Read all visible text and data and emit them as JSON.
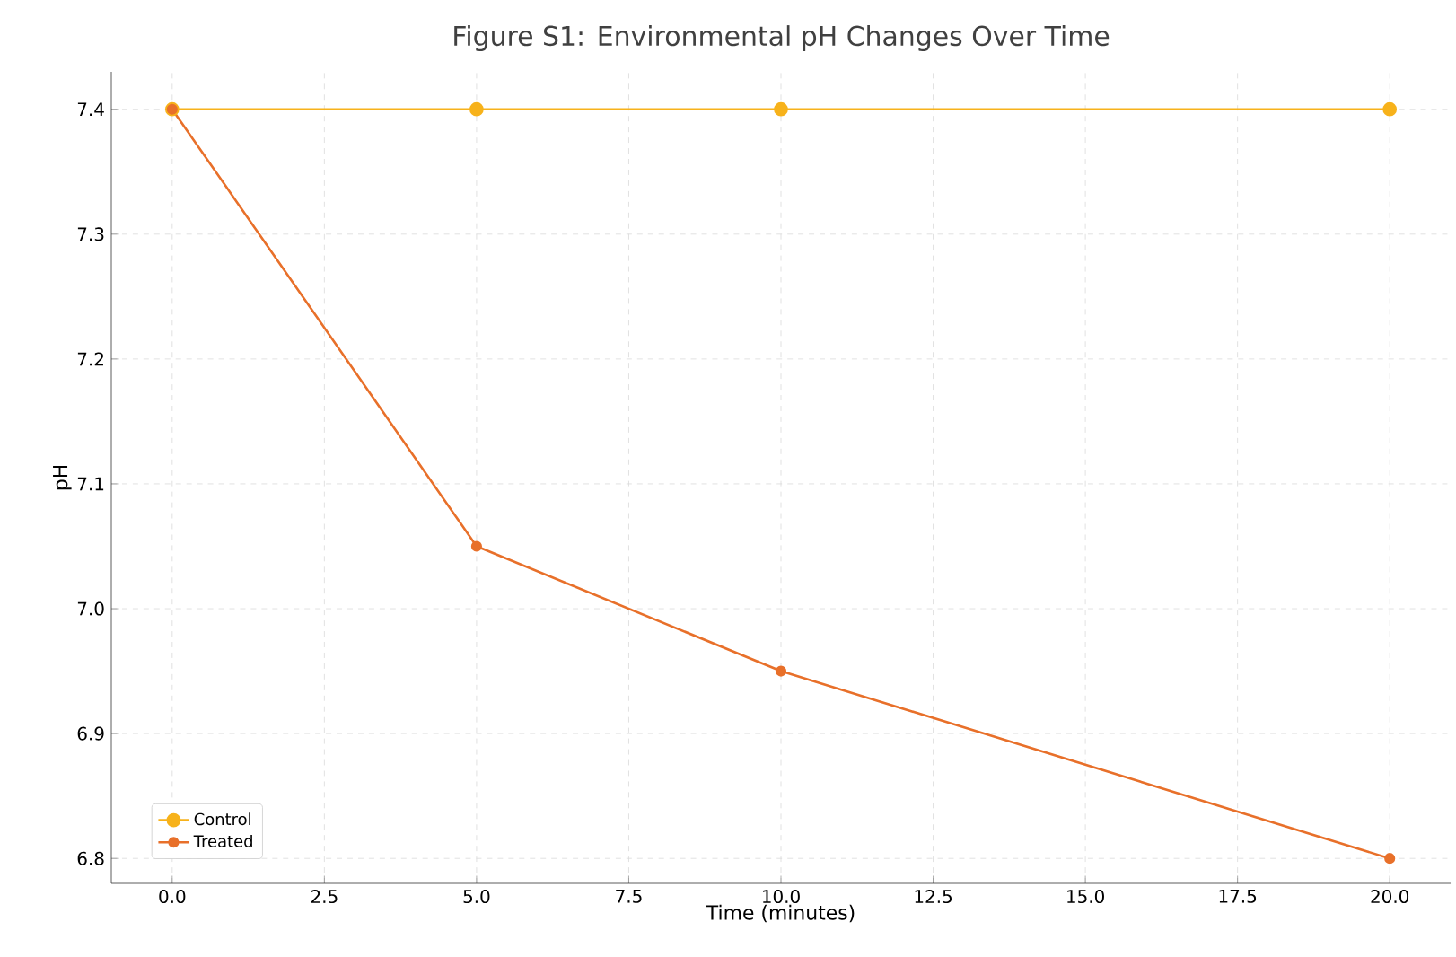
{
  "chart_data": {
    "type": "line",
    "title": "Figure S1: Environmental pH Changes Over Time",
    "xlabel": "Time (minutes)",
    "ylabel": "pH",
    "x": [
      0,
      5,
      10,
      20
    ],
    "series": [
      {
        "name": "Control",
        "color": "#f7b21b",
        "values": [
          7.4,
          7.4,
          7.4,
          7.4
        ]
      },
      {
        "name": "Treated",
        "color": "#e8702a",
        "values": [
          7.4,
          7.05,
          6.95,
          6.8
        ]
      }
    ],
    "xlim": [
      -1,
      21
    ],
    "ylim": [
      6.78,
      7.43
    ],
    "xticks": [
      {
        "value": 0,
        "label": "0.0"
      },
      {
        "value": 2.5,
        "label": "2.5"
      },
      {
        "value": 5,
        "label": "5.0"
      },
      {
        "value": 7.5,
        "label": "7.5"
      },
      {
        "value": 10,
        "label": "10.0"
      },
      {
        "value": 12.5,
        "label": "12.5"
      },
      {
        "value": 15,
        "label": "15.0"
      },
      {
        "value": 17.5,
        "label": "17.5"
      },
      {
        "value": 20,
        "label": "20.0"
      }
    ],
    "yticks": [
      {
        "value": 6.8,
        "label": "6.8"
      },
      {
        "value": 6.9,
        "label": "6.9"
      },
      {
        "value": 7.0,
        "label": "7.0"
      },
      {
        "value": 7.1,
        "label": "7.1"
      },
      {
        "value": 7.2,
        "label": "7.2"
      },
      {
        "value": 7.3,
        "label": "7.3"
      },
      {
        "value": 7.4,
        "label": "7.4"
      }
    ],
    "grid": true,
    "legend": "bottom left",
    "marker": "circle",
    "line_style": "solid"
  }
}
